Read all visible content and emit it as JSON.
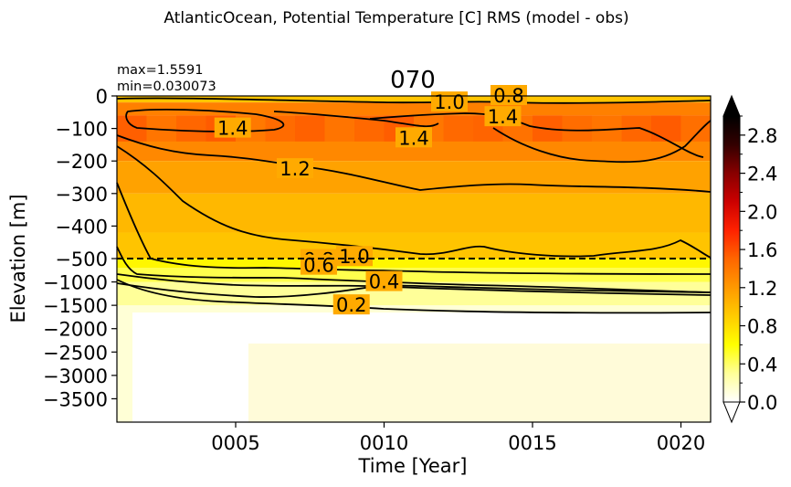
{
  "suptitle": "AtlanticOcean, Potential Temperature [C] RMS (model - obs)",
  "stats": {
    "max": "max=1.5591",
    "min": "min=0.030073"
  },
  "chart_data": {
    "type": "heatmap",
    "title": "070",
    "xlabel": "Time [Year]",
    "ylabel": "Elevation [m]",
    "x_range": [
      1,
      21
    ],
    "x_ticks": [
      "0005",
      "0010",
      "0015",
      "0020"
    ],
    "x_tick_values": [
      5,
      10,
      15,
      20
    ],
    "y_ticks_upper": [
      "0",
      "−100",
      "−200",
      "−300",
      "−400",
      "−500"
    ],
    "y_ticks_upper_values": [
      0,
      -100,
      -200,
      -300,
      -400,
      -500
    ],
    "y_ticks_lower": [
      "−1000",
      "−1500",
      "−2000",
      "−2500",
      "−3000",
      "−3500"
    ],
    "y_ticks_lower_values": [
      -1000,
      -1500,
      -2000,
      -2500,
      -3000,
      -3500
    ],
    "upper_range": [
      -500,
      0
    ],
    "lower_range": [
      -4000,
      -500
    ],
    "split_depth": -500,
    "colorbar": {
      "min": 0.0,
      "max": 3.0,
      "ticks": [
        "0.0",
        "0.4",
        "0.8",
        "1.2",
        "1.6",
        "2.0",
        "2.4",
        "2.8"
      ],
      "tick_values": [
        0.0,
        0.4,
        0.8,
        1.2,
        1.6,
        2.0,
        2.4,
        2.8
      ],
      "colors": [
        "#ffffff",
        "#ffff99",
        "#ffff00",
        "#ffcc00",
        "#ff9900",
        "#ff6600",
        "#ff2200",
        "#cc0000",
        "#880000",
        "#330000",
        "#000000"
      ]
    },
    "field_bands": [
      {
        "top": 0,
        "bottom": -20,
        "value": 0.95
      },
      {
        "top": -20,
        "bottom": -60,
        "value": 1.35
      },
      {
        "top": -60,
        "bottom": -130,
        "value": 1.45
      },
      {
        "top": -130,
        "bottom": -200,
        "value": 1.3
      },
      {
        "top": -200,
        "bottom": -300,
        "value": 1.15
      },
      {
        "top": -300,
        "bottom": -420,
        "value": 1.02
      },
      {
        "top": -420,
        "bottom": -500,
        "value": 0.95
      },
      {
        "top": -500,
        "bottom": -700,
        "value": 0.65
      },
      {
        "top": -700,
        "bottom": -1000,
        "value": 0.45
      },
      {
        "top": -1000,
        "bottom": -1500,
        "value": 0.3
      },
      {
        "top": -1500,
        "bottom": -4000,
        "value": 0.12
      }
    ],
    "contour_labels": [
      {
        "text": "1.0",
        "x": 12.2,
        "y": -20
      },
      {
        "text": "0.8",
        "x": 14.2,
        "y": 0
      },
      {
        "text": "1.4",
        "x": 4.9,
        "y": -100
      },
      {
        "text": "1.4",
        "x": 11.0,
        "y": -130
      },
      {
        "text": "1.4",
        "x": 14.0,
        "y": -65
      },
      {
        "text": "1.2",
        "x": 7.0,
        "y": -225
      },
      {
        "text": "1.0",
        "x": 9.0,
        "y": -495
      },
      {
        "text": "0.8",
        "x": 7.8,
        "y": -530
      },
      {
        "text": "0.6",
        "x": 7.8,
        "y": -650
      },
      {
        "text": "0.4",
        "x": 10.0,
        "y": -1000
      },
      {
        "text": "0.2",
        "x": 8.9,
        "y": -1500
      }
    ]
  }
}
